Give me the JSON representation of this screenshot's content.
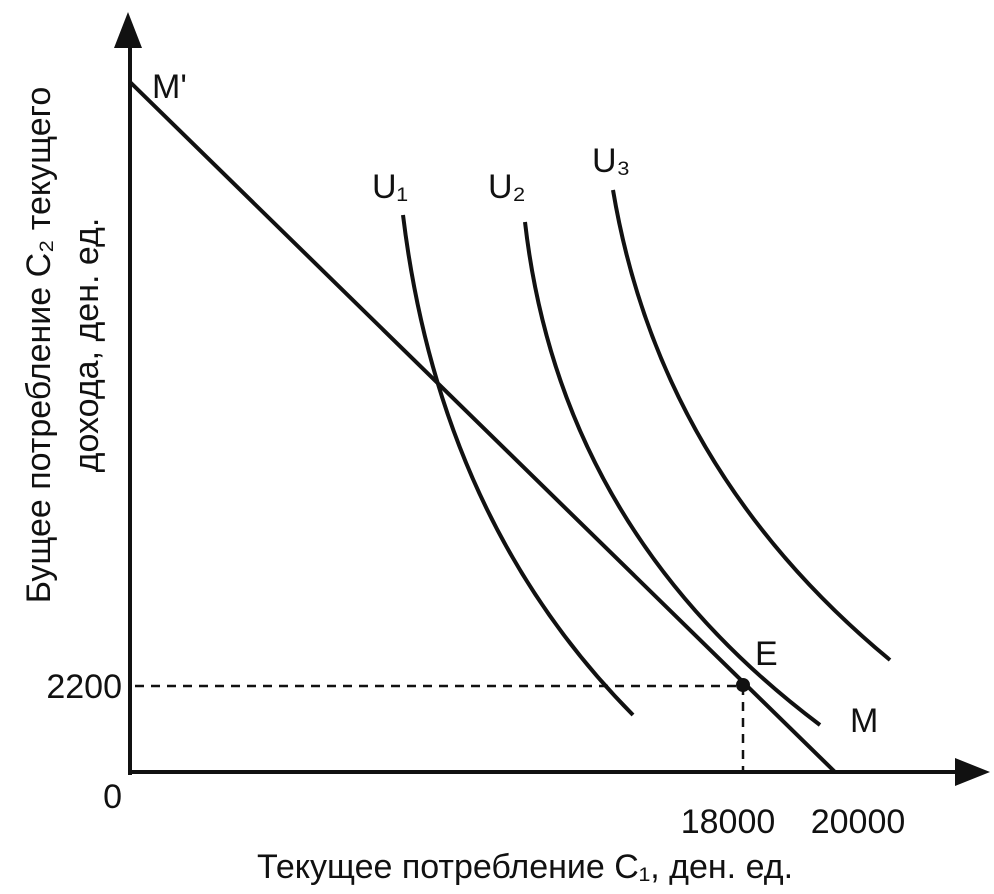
{
  "axes": {
    "x_label": "Текущее потребление C₁, ден. ед.",
    "y_label_lines": [
      "Бущее потребление C₂ текущего",
      "дохода, ден. ед."
    ]
  },
  "ticks": {
    "origin": "0",
    "y": "2200",
    "x": [
      "18000",
      "20000"
    ]
  },
  "budget_line": {
    "start_label": "M'",
    "end_label": "M"
  },
  "curves": [
    {
      "label": "U₁"
    },
    {
      "label": "U₂"
    },
    {
      "label": "U₃"
    }
  ],
  "point": {
    "label": "E"
  }
}
